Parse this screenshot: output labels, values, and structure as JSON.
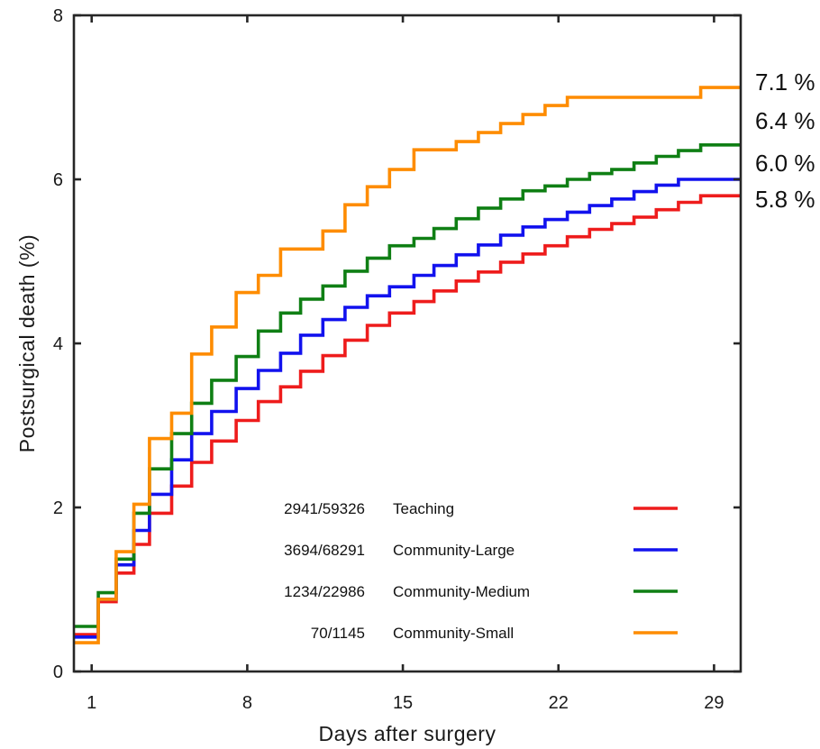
{
  "chart_data": {
    "type": "line",
    "step": true,
    "xlabel": "Days after surgery",
    "ylabel": "Postsurgical death (%)",
    "xlim": [
      0.2,
      30.2
    ],
    "ylim": [
      0,
      8
    ],
    "x_ticks": [
      1,
      8,
      15,
      22,
      29
    ],
    "y_ticks": [
      0,
      2,
      4,
      6,
      8
    ],
    "x_tick_labels": [
      "1",
      "8",
      "15",
      "22",
      "29"
    ],
    "y_tick_labels": [
      "0",
      "2",
      "4",
      "6",
      "8"
    ],
    "grid": false,
    "legend_position": "lower-center",
    "series": [
      {
        "name": "Teaching",
        "count": "2941/59326",
        "end_label": "5.8 %",
        "color": "#ee1c1c",
        "steps": [
          [
            0.2,
            0.45
          ],
          [
            0.7,
            0.45
          ],
          [
            1.3,
            0.85
          ],
          [
            2.1,
            1.2
          ],
          [
            2.9,
            1.55
          ],
          [
            3.6,
            1.93
          ],
          [
            4.6,
            2.26
          ],
          [
            5.5,
            2.55
          ],
          [
            6.4,
            2.81
          ],
          [
            7.5,
            3.06
          ],
          [
            8.5,
            3.29
          ],
          [
            9.5,
            3.47
          ],
          [
            10.4,
            3.66
          ],
          [
            11.4,
            3.85
          ],
          [
            12.4,
            4.04
          ],
          [
            13.4,
            4.22
          ],
          [
            14.4,
            4.37
          ],
          [
            15.5,
            4.51
          ],
          [
            16.4,
            4.64
          ],
          [
            17.4,
            4.76
          ],
          [
            18.4,
            4.87
          ],
          [
            19.4,
            4.99
          ],
          [
            20.4,
            5.09
          ],
          [
            21.4,
            5.19
          ],
          [
            22.4,
            5.3
          ],
          [
            23.4,
            5.39
          ],
          [
            24.4,
            5.46
          ],
          [
            25.4,
            5.54
          ],
          [
            26.4,
            5.63
          ],
          [
            27.4,
            5.72
          ],
          [
            28.4,
            5.8
          ]
        ]
      },
      {
        "name": "Community-Large",
        "count": "3694/68291",
        "end_label": "6.0 %",
        "color": "#1212ee",
        "steps": [
          [
            0.2,
            0.42
          ],
          [
            0.7,
            0.42
          ],
          [
            1.3,
            0.88
          ],
          [
            2.1,
            1.3
          ],
          [
            2.9,
            1.72
          ],
          [
            3.6,
            2.16
          ],
          [
            4.6,
            2.58
          ],
          [
            5.5,
            2.9
          ],
          [
            6.4,
            3.17
          ],
          [
            7.5,
            3.45
          ],
          [
            8.5,
            3.67
          ],
          [
            9.5,
            3.88
          ],
          [
            10.4,
            4.1
          ],
          [
            11.4,
            4.29
          ],
          [
            12.4,
            4.44
          ],
          [
            13.4,
            4.58
          ],
          [
            14.4,
            4.69
          ],
          [
            15.5,
            4.83
          ],
          [
            16.4,
            4.95
          ],
          [
            17.4,
            5.08
          ],
          [
            18.4,
            5.2
          ],
          [
            19.4,
            5.32
          ],
          [
            20.4,
            5.42
          ],
          [
            21.4,
            5.51
          ],
          [
            22.4,
            5.6
          ],
          [
            23.4,
            5.68
          ],
          [
            24.4,
            5.76
          ],
          [
            25.4,
            5.85
          ],
          [
            26.4,
            5.93
          ],
          [
            27.4,
            6.0
          ]
        ]
      },
      {
        "name": "Community-Medium",
        "count": "1234/22986",
        "end_label": "6.4 %",
        "color": "#0f7f14",
        "steps": [
          [
            0.2,
            0.55
          ],
          [
            0.7,
            0.55
          ],
          [
            1.3,
            0.96
          ],
          [
            2.1,
            1.37
          ],
          [
            2.9,
            1.93
          ],
          [
            3.6,
            2.47
          ],
          [
            4.6,
            2.9
          ],
          [
            5.5,
            3.27
          ],
          [
            6.4,
            3.55
          ],
          [
            7.5,
            3.84
          ],
          [
            8.5,
            4.15
          ],
          [
            9.5,
            4.37
          ],
          [
            10.4,
            4.54
          ],
          [
            11.4,
            4.7
          ],
          [
            12.4,
            4.88
          ],
          [
            13.4,
            5.04
          ],
          [
            14.4,
            5.19
          ],
          [
            15.5,
            5.28
          ],
          [
            16.4,
            5.4
          ],
          [
            17.4,
            5.52
          ],
          [
            18.4,
            5.65
          ],
          [
            19.4,
            5.76
          ],
          [
            20.4,
            5.86
          ],
          [
            21.4,
            5.92
          ],
          [
            22.4,
            6.0
          ],
          [
            23.4,
            6.07
          ],
          [
            24.4,
            6.12
          ],
          [
            25.4,
            6.2
          ],
          [
            26.4,
            6.28
          ],
          [
            27.4,
            6.35
          ],
          [
            28.4,
            6.42
          ]
        ]
      },
      {
        "name": "Community-Small",
        "count": "70/1145",
        "end_label": "7.1 %",
        "color": "#fe8c00",
        "steps": [
          [
            0.2,
            0.35
          ],
          [
            0.7,
            0.35
          ],
          [
            1.3,
            0.88
          ],
          [
            2.1,
            1.46
          ],
          [
            2.9,
            2.04
          ],
          [
            3.6,
            2.84
          ],
          [
            4.6,
            3.15
          ],
          [
            5.5,
            3.87
          ],
          [
            6.4,
            4.2
          ],
          [
            7.5,
            4.62
          ],
          [
            8.5,
            4.83
          ],
          [
            9.5,
            5.15
          ],
          [
            11.4,
            5.37
          ],
          [
            12.4,
            5.69
          ],
          [
            13.4,
            5.91
          ],
          [
            14.4,
            6.12
          ],
          [
            15.5,
            6.36
          ],
          [
            17.4,
            6.46
          ],
          [
            18.4,
            6.57
          ],
          [
            19.4,
            6.68
          ],
          [
            20.4,
            6.79
          ],
          [
            21.4,
            6.9
          ],
          [
            22.4,
            7.0
          ],
          [
            28.4,
            7.12
          ]
        ]
      }
    ]
  }
}
